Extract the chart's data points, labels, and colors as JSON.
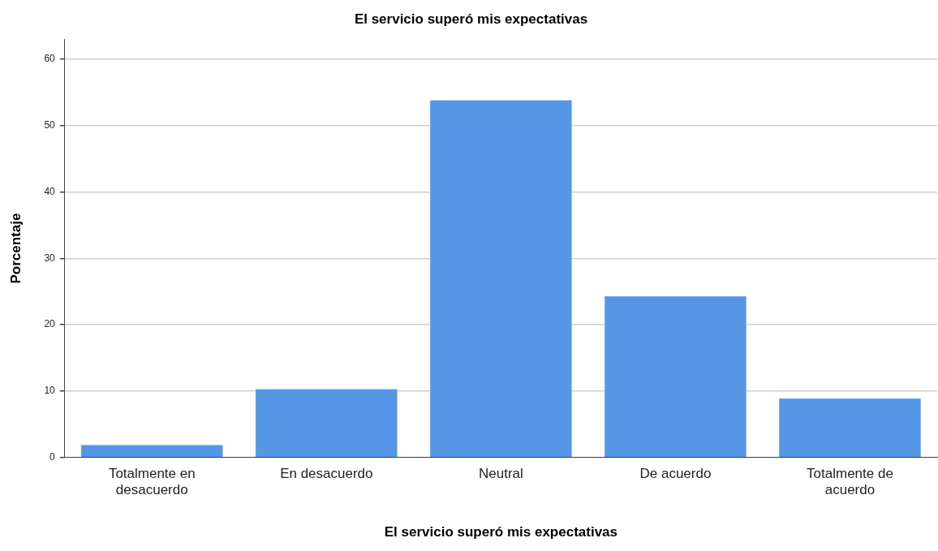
{
  "chart_data": {
    "type": "bar",
    "title": "El servicio superó mis expectativas",
    "xlabel": "El servicio superó mis expectativas",
    "ylabel": "Porcentaje",
    "categories": [
      "Totalmente en desacuerdo",
      "En desacuerdo",
      "Neutral",
      "De acuerdo",
      "Totalmente de acuerdo"
    ],
    "values": [
      2.0,
      10.4,
      53.9,
      24.4,
      9.0
    ],
    "color": "#5596e6",
    "ylim": [
      0,
      63
    ],
    "yticks": [
      0,
      10,
      20,
      30,
      40,
      50,
      60
    ],
    "grid": "y"
  }
}
